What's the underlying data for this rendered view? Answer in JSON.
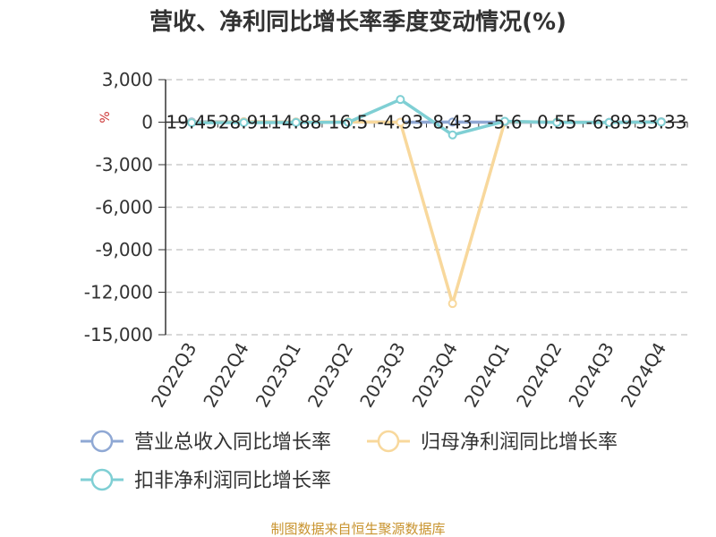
{
  "chart_data": {
    "type": "line",
    "title": "营收、净利同比增长率季度变动情况(%)",
    "ylabel": "%",
    "ylim": [
      -15000,
      3000
    ],
    "yticks": [
      3000,
      0,
      -3000,
      -6000,
      -9000,
      -12000,
      -15000
    ],
    "ytick_labels": [
      "3,000",
      "0",
      "-3,000",
      "-6,000",
      "-9,000",
      "-12,000",
      "-15,000"
    ],
    "categories": [
      "2022Q3",
      "2022Q4",
      "2023Q1",
      "2023Q2",
      "2023Q3",
      "2023Q4",
      "2024Q1",
      "2024Q2",
      "2024Q3",
      "2024Q4"
    ],
    "grid": true,
    "legend_position": "bottom",
    "series": [
      {
        "name": "营业总收入同比增长率",
        "color": "#8fa8d4",
        "values": [
          19.45,
          28.91,
          14.88,
          16.5,
          -4.93,
          8.43,
          -5.6,
          0.55,
          -6.89,
          33.33
        ],
        "labels": [
          "19.45",
          "28.91",
          "14.88",
          "16.5",
          "-4.93",
          "8.43",
          "-5.6",
          "0.55",
          "-6.89",
          "33.33"
        ]
      },
      {
        "name": "归母净利润同比增长率",
        "color": "#f8d89c",
        "values": [
          -20,
          25,
          10,
          20,
          -10,
          -12800,
          30,
          5,
          -20,
          15
        ]
      },
      {
        "name": "扣非净利润同比增长率",
        "color": "#7fcfd4",
        "values": [
          -40,
          -30,
          -20,
          -10,
          1600,
          -900,
          60,
          -15,
          -20,
          10
        ]
      }
    ]
  },
  "source_note": "制图数据来自恒生聚源数据库"
}
